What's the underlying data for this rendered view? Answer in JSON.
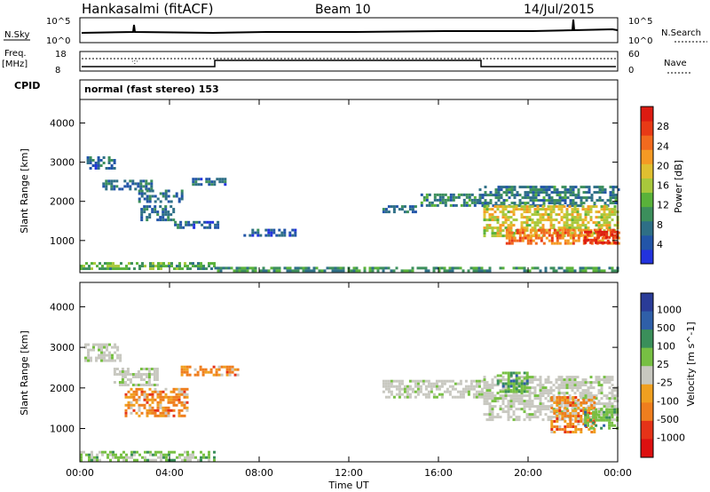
{
  "header": {
    "title": "Hankasalmi (fitACF)",
    "beam": "Beam 10",
    "date": "14/Jul/2015"
  },
  "status_panels": {
    "nsky_label": "N.Sky",
    "nsky_ticks": [
      "10^5",
      "10^0"
    ],
    "nsearch_label": "N.Search",
    "nsearch_ticks": [
      "10^5",
      "10^0"
    ],
    "freq_label": "Freq.",
    "freq_unit": "[MHz]",
    "freq_ticks": [
      "18",
      "8"
    ],
    "nave_label": "Nave",
    "nave_ticks": [
      "60",
      "0"
    ],
    "cpid_label": "CPID",
    "cpid_text": "normal (fast stereo) 153"
  },
  "chart_data": [
    {
      "type": "heatmap",
      "name": "power-panel",
      "xlabel": "",
      "ylabel": "Slant Range [km]",
      "x_range": [
        0,
        24
      ],
      "ylim": [
        180,
        4600
      ],
      "yticks": [
        "4000",
        "3000",
        "2000",
        "1000"
      ],
      "colorbar": {
        "label": "Power [dB]",
        "ticks": [
          "28",
          "24",
          "20",
          "16",
          "12",
          "8",
          "4"
        ],
        "range": [
          0,
          32
        ]
      },
      "echo_regions": [
        {
          "t": [
            0,
            6
          ],
          "range": [
            250,
            450
          ],
          "level": 12
        },
        {
          "t": [
            6,
            24
          ],
          "range": [
            250,
            330
          ],
          "level": 10
        },
        {
          "t": [
            0.3,
            1.6
          ],
          "range": [
            2850,
            3150
          ],
          "level": 6
        },
        {
          "t": [
            1.0,
            3.2
          ],
          "range": [
            2300,
            2550
          ],
          "level": 7
        },
        {
          "t": [
            2.6,
            4.6
          ],
          "range": [
            2000,
            2300
          ],
          "level": 8
        },
        {
          "t": [
            2.7,
            4.2
          ],
          "range": [
            1500,
            1900
          ],
          "level": 7
        },
        {
          "t": [
            4.2,
            6.2
          ],
          "range": [
            1300,
            1500
          ],
          "level": 6
        },
        {
          "t": [
            5.0,
            6.5
          ],
          "range": [
            2400,
            2600
          ],
          "level": 6
        },
        {
          "t": [
            7.3,
            9.6
          ],
          "range": [
            1150,
            1300
          ],
          "level": 5
        },
        {
          "t": [
            13.5,
            15.0
          ],
          "range": [
            1700,
            1900
          ],
          "level": 7
        },
        {
          "t": [
            15.2,
            17.8
          ],
          "range": [
            1900,
            2200
          ],
          "level": 9
        },
        {
          "t": [
            17.8,
            24
          ],
          "range": [
            1900,
            2400
          ],
          "level": 8
        },
        {
          "t": [
            18,
            24
          ],
          "range": [
            1100,
            1900
          ],
          "level": 18
        },
        {
          "t": [
            19,
            24
          ],
          "range": [
            900,
            1300
          ],
          "level": 24
        },
        {
          "t": [
            22.5,
            24
          ],
          "range": [
            950,
            1250
          ],
          "level": 30
        }
      ]
    },
    {
      "type": "heatmap",
      "name": "velocity-panel",
      "xlabel": "Time UT",
      "ylabel": "Slant Range [km]",
      "x_range": [
        0,
        24
      ],
      "ylim": [
        180,
        4600
      ],
      "yticks": [
        "4000",
        "3000",
        "2000",
        "1000"
      ],
      "xticks": [
        "00:00",
        "04:00",
        "08:00",
        "12:00",
        "16:00",
        "20:00",
        "00:00"
      ],
      "colorbar": {
        "label": "Velocity [m s^-1]",
        "ticks": [
          "1000",
          "500",
          "100",
          "25",
          "-25",
          "-100",
          "-500",
          "-1000"
        ]
      },
      "echo_regions": [
        {
          "t": [
            0,
            6
          ],
          "range": [
            250,
            450
          ],
          "level": "low-positive"
        },
        {
          "t": [
            0.2,
            1.8
          ],
          "range": [
            2700,
            3100
          ],
          "level": "ground"
        },
        {
          "t": [
            1.5,
            3.5
          ],
          "range": [
            2100,
            2500
          ],
          "level": "ground"
        },
        {
          "t": [
            2.0,
            4.8
          ],
          "range": [
            1300,
            2000
          ],
          "level": "negative"
        },
        {
          "t": [
            4.5,
            7.0
          ],
          "range": [
            2300,
            2550
          ],
          "level": "negative"
        },
        {
          "t": [
            13.5,
            18
          ],
          "range": [
            1800,
            2200
          ],
          "level": "ground"
        },
        {
          "t": [
            18,
            24
          ],
          "range": [
            1200,
            2300
          ],
          "level": "ground"
        },
        {
          "t": [
            18.6,
            20
          ],
          "range": [
            1900,
            2400
          ],
          "level": "positive"
        },
        {
          "t": [
            21,
            23
          ],
          "range": [
            900,
            1800
          ],
          "level": "negative"
        },
        {
          "t": [
            22.5,
            24
          ],
          "range": [
            1000,
            1500
          ],
          "level": "positive"
        }
      ]
    }
  ],
  "colors": {
    "power_scale": [
      "#2233dd",
      "#2255a8",
      "#2e6f86",
      "#3c8f5c",
      "#59b23a",
      "#a8c83c",
      "#e0c030",
      "#f59a24",
      "#f26a1e",
      "#e83a16",
      "#dd1b12"
    ],
    "velocity_scale": [
      "#2a3c98",
      "#2f5fa8",
      "#3a8f5a",
      "#77c043",
      "#c8c8c0",
      "#f0a020",
      "#ef7e1e",
      "#e53318",
      "#dd1010"
    ]
  }
}
